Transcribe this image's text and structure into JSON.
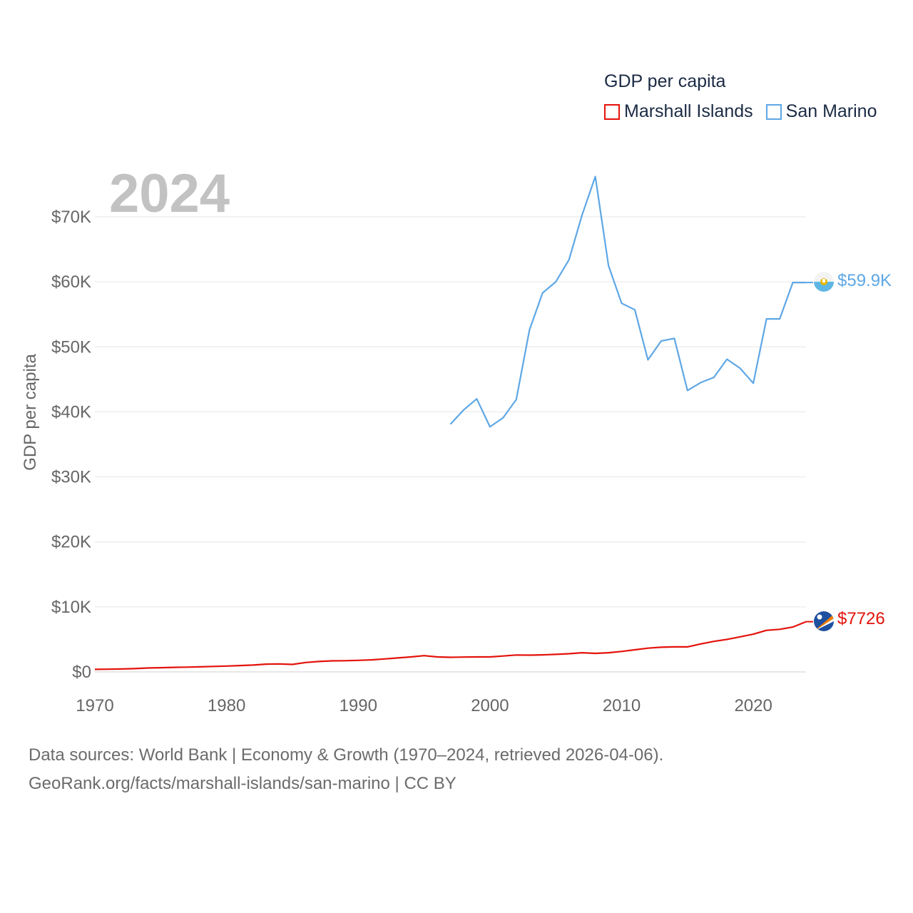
{
  "chart_data": {
    "type": "line",
    "title": "GDP per capita",
    "year_label": "2024",
    "ylabel": "GDP per capita",
    "xlabel": "",
    "xlim": [
      1970,
      2024
    ],
    "ylim": [
      0,
      75000
    ],
    "y_ticks": [
      0,
      10000,
      20000,
      30000,
      40000,
      50000,
      60000,
      70000
    ],
    "y_tick_labels": [
      "$0",
      "$10K",
      "$20K",
      "$30K",
      "$40K",
      "$50K",
      "$60K",
      "$70K"
    ],
    "x_ticks": [
      1970,
      1980,
      1990,
      2000,
      2010,
      2020
    ],
    "x_tick_labels": [
      "1970",
      "1980",
      "1990",
      "2000",
      "2010",
      "2020"
    ],
    "grid": true,
    "legend_title": "GDP per capita",
    "series": [
      {
        "name": "Marshall Islands",
        "color": "#e3120b",
        "end_label": "$7726",
        "x": [
          1970,
          1971,
          1972,
          1973,
          1974,
          1975,
          1976,
          1977,
          1978,
          1979,
          1980,
          1981,
          1982,
          1983,
          1984,
          1985,
          1986,
          1987,
          1988,
          1989,
          1990,
          1991,
          1992,
          1993,
          1994,
          1995,
          1996,
          1997,
          1998,
          1999,
          2000,
          2001,
          2002,
          2003,
          2004,
          2005,
          2006,
          2007,
          2008,
          2009,
          2010,
          2011,
          2012,
          2013,
          2014,
          2015,
          2016,
          2017,
          2018,
          2019,
          2020,
          2021,
          2022,
          2023,
          2024
        ],
        "values": [
          400,
          420,
          450,
          500,
          600,
          650,
          700,
          730,
          780,
          850,
          900,
          980,
          1050,
          1200,
          1230,
          1150,
          1450,
          1600,
          1700,
          1720,
          1780,
          1850,
          2000,
          2150,
          2300,
          2500,
          2300,
          2250,
          2280,
          2300,
          2300,
          2450,
          2600,
          2580,
          2620,
          2700,
          2800,
          2950,
          2850,
          2950,
          3150,
          3400,
          3650,
          3800,
          3850,
          3850,
          4300,
          4700,
          5000,
          5400,
          5800,
          6400,
          6550,
          6900,
          7726
        ]
      },
      {
        "name": "San Marino",
        "color": "#5ea7e5",
        "end_label": "$59.9K",
        "x": [
          1997,
          1998,
          1999,
          2000,
          2001,
          2002,
          2003,
          2004,
          2005,
          2006,
          2007,
          2008,
          2009,
          2010,
          2011,
          2012,
          2013,
          2014,
          2015,
          2016,
          2017,
          2018,
          2019,
          2020,
          2021,
          2022,
          2023,
          2024
        ],
        "values": [
          38100,
          40300,
          42000,
          37700,
          39100,
          41900,
          52600,
          58300,
          60000,
          63400,
          70300,
          76200,
          62500,
          56700,
          55700,
          48000,
          50900,
          51300,
          43300,
          44500,
          45300,
          48100,
          46700,
          44400,
          54300,
          54300,
          59900,
          59900
        ]
      }
    ]
  },
  "source": {
    "line1": "Data sources: World Bank | Economy & Growth (1970–2024, retrieved 2026-04-06).",
    "line2": "GeoRank.org/facts/marshall-islands/san-marino | CC BY"
  }
}
